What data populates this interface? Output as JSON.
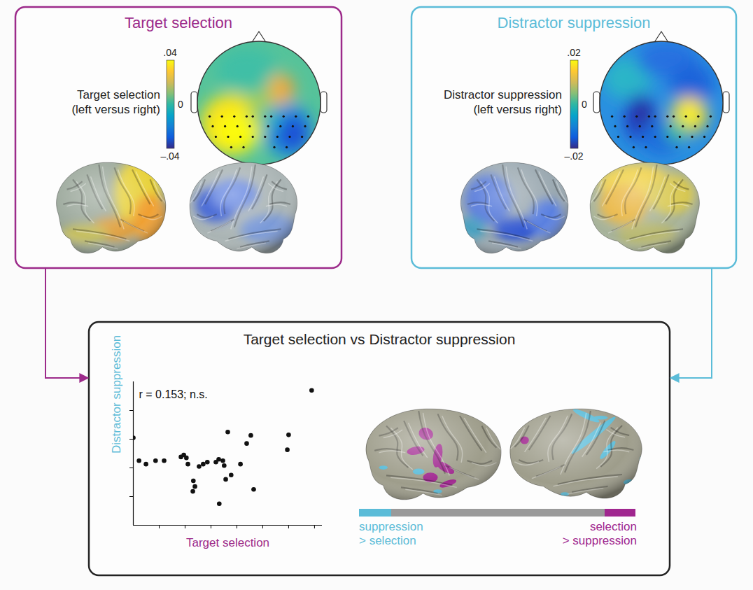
{
  "panels": {
    "target_selection": {
      "title": "Target selection",
      "colorbar": {
        "label": [
          "Target selection",
          "(left versus right)"
        ],
        "range": [
          -0.04,
          0.04
        ],
        "ticks": [
          {
            "value": 0.04,
            "label": ".04"
          },
          0,
          {
            "value": -0.04,
            "label": "–.04"
          }
        ]
      }
    },
    "distractor_suppression": {
      "title": "Distractor suppression",
      "colorbar": {
        "label": [
          "Distractor suppression",
          "(left versus right)"
        ],
        "range": [
          -0.02,
          0.02
        ],
        "ticks": [
          {
            "value": 0.02,
            "label": ".02"
          },
          0,
          {
            "value": -0.02,
            "label": "–.02"
          }
        ]
      }
    },
    "comparison": {
      "title": "Target selection vs Distractor suppression",
      "brain_map_legend": {
        "low": [
          "suppression",
          "> selection"
        ],
        "high": [
          "selection",
          "> suppression"
        ]
      }
    }
  },
  "chart_data": {
    "type": "scatter",
    "xlabel": "Target selection",
    "ylabel": "Distractor suppression",
    "annotation": "r = 0.153; n.s.",
    "x": [
      0,
      0.22,
      0.49,
      0.86,
      1.19,
      1.84,
      1.95,
      2.05,
      2.11,
      2.32,
      2.3,
      2.38,
      2.54,
      2.7,
      2.86,
      3.19,
      3.3,
      3.32,
      3.46,
      3.51,
      3.57,
      3.78,
      3.65,
      4.14,
      4.38,
      4.54,
      4.65,
      5.95,
      6.0,
      6.89
    ],
    "values": [
      3.05,
      2.25,
      2.13,
      2.25,
      2.25,
      2.38,
      2.45,
      2.35,
      2.13,
      1.55,
      1.18,
      1.35,
      2.05,
      2.13,
      2.2,
      2.2,
      2.3,
      0.75,
      2.25,
      2.08,
      1.6,
      1.75,
      3.25,
      2.13,
      2.85,
      3.13,
      1.25,
      2.63,
      3.15,
      4.7
    ],
    "xlim": [
      0,
      7.3
    ],
    "ylim": [
      0,
      5
    ],
    "xticks": [
      1,
      2,
      3,
      4,
      5,
      6,
      7
    ],
    "yticks": [
      1,
      2,
      3,
      4
    ],
    "tick_labels": false,
    "color": "#111111"
  }
}
